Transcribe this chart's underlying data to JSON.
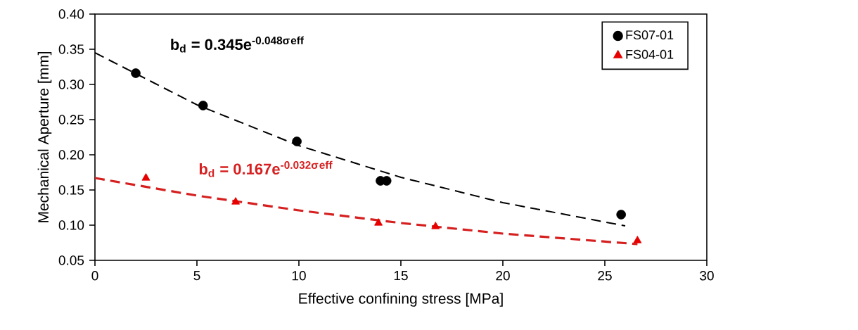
{
  "chart_data": {
    "type": "scatter",
    "xlabel": "Effective confining stress [MPa]",
    "ylabel": "Mechanical Aperture [mm]",
    "xlim": [
      0,
      30
    ],
    "ylim": [
      0.05,
      0.4
    ],
    "xticks": [
      0,
      5,
      10,
      15,
      20,
      25,
      30
    ],
    "yticks": [
      {
        "value": 0.05,
        "label": "0.05"
      },
      {
        "value": 0.1,
        "label": "0.10"
      },
      {
        "value": 0.15,
        "label": "0.15"
      },
      {
        "value": 0.2,
        "label": "0.20"
      },
      {
        "value": 0.25,
        "label": "0.25"
      },
      {
        "value": 0.3,
        "label": "0.30"
      },
      {
        "value": 0.35,
        "label": "0.35"
      },
      {
        "value": 0.4,
        "label": "0.40"
      }
    ],
    "legend": "top right",
    "grid": false,
    "series": [
      {
        "name": "FS07-01",
        "marker": "circle",
        "color": "#000000",
        "x": [
          2.0,
          5.3,
          9.9,
          14.0,
          14.3,
          25.8
        ],
        "values": [
          0.316,
          0.27,
          0.219,
          0.163,
          0.163,
          0.115
        ]
      },
      {
        "name": "FS04-01",
        "marker": "triangle",
        "color": "#e60000",
        "x": [
          2.5,
          6.9,
          13.9,
          16.7,
          26.6
        ],
        "values": [
          0.167,
          0.133,
          0.103,
          0.098,
          0.078
        ]
      },
      {
        "type": "line",
        "marker": "none",
        "line_style": "dashed",
        "color": "#000000",
        "x": [
          0,
          5,
          10,
          15,
          20,
          26
        ],
        "values": [
          0.345,
          0.271,
          0.213,
          0.168,
          0.132,
          0.099
        ]
      },
      {
        "type": "line",
        "marker": "none",
        "line_style": "dashed",
        "color": "#d62020",
        "x": [
          0,
          5,
          10,
          15,
          20,
          26.6
        ],
        "values": [
          0.167,
          0.142,
          0.121,
          0.103,
          0.088,
          0.073
        ]
      }
    ],
    "annotations": [
      "b$_{d}$ = 0.345e$^{-0.048σ}$$^{eff}$",
      "b$_{d}$ = 0.167e$^{-0.032σ}$$^{eff}$"
    ]
  }
}
